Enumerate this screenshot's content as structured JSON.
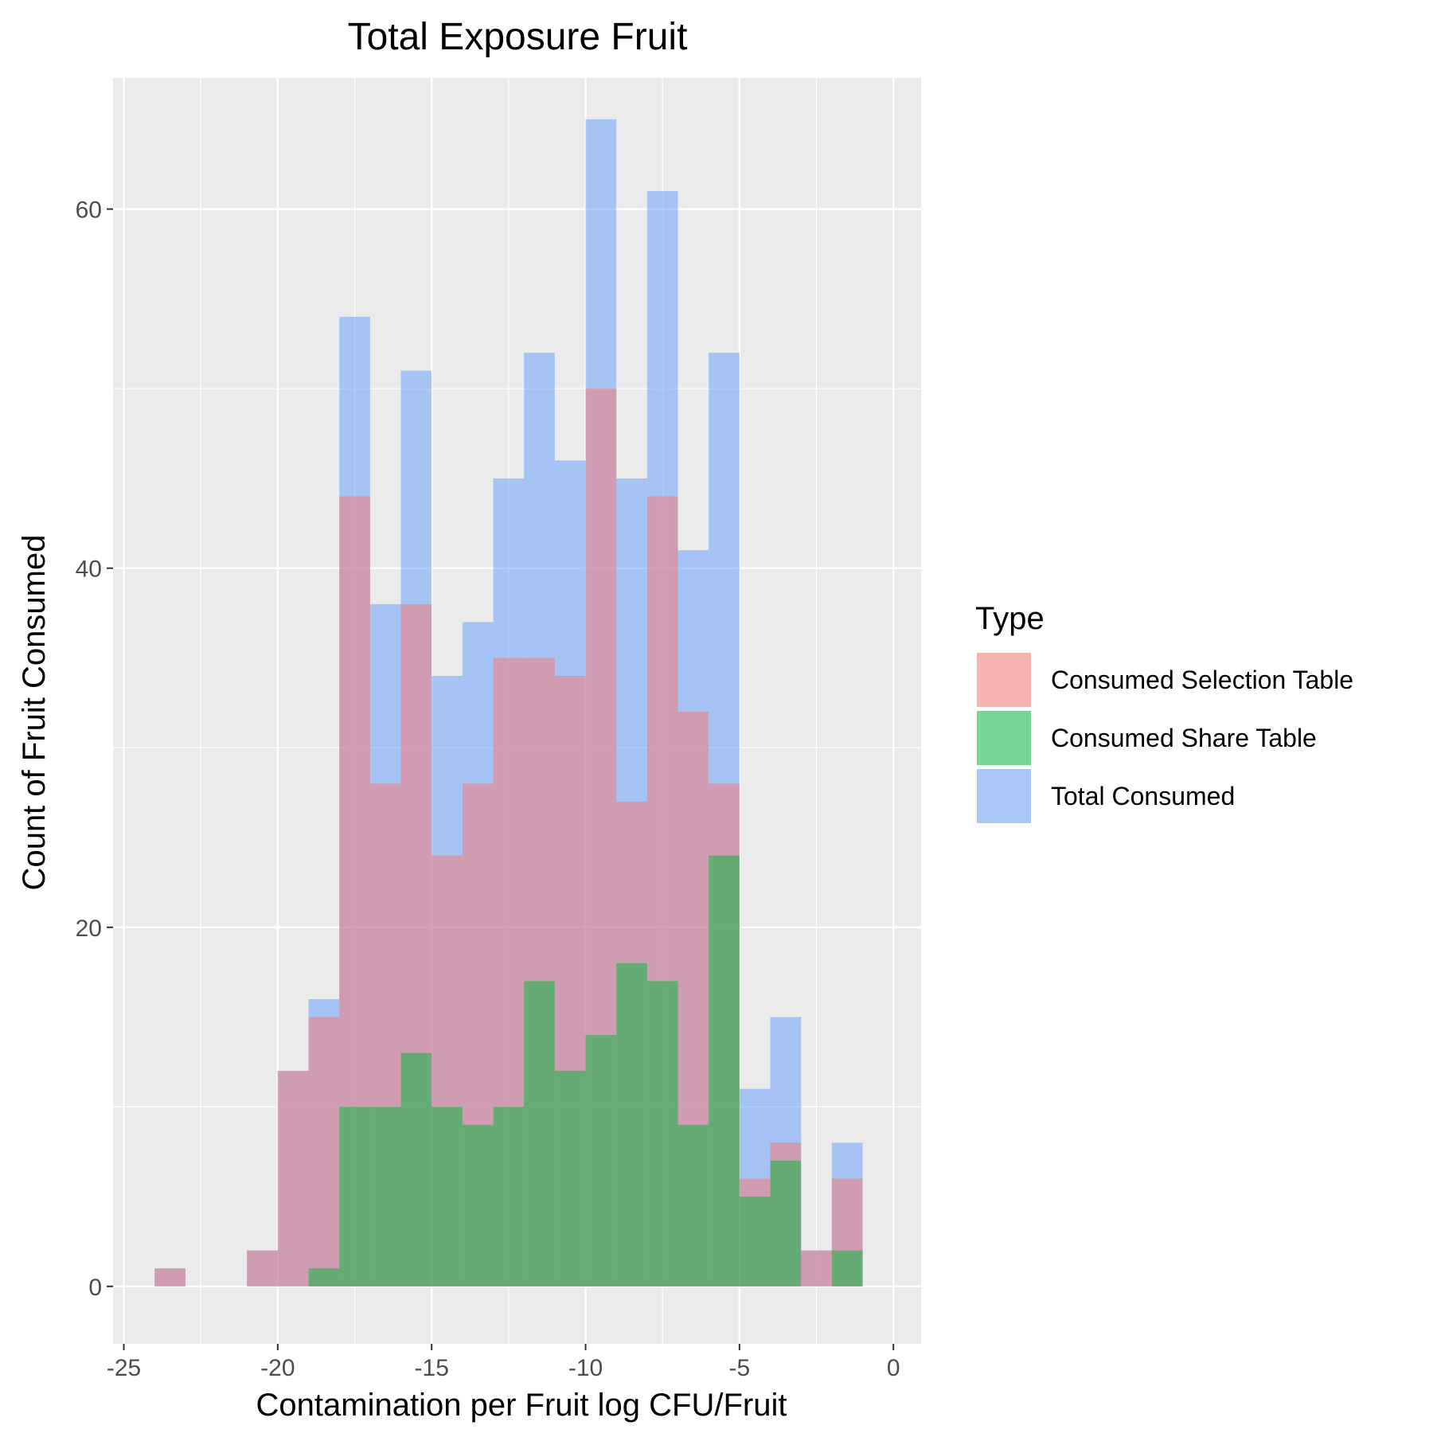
{
  "chart_data": {
    "type": "bar",
    "title": "Total Exposure Fruit",
    "xlabel": "Contamination per Fruit log CFU/Fruit",
    "ylabel": "Count of Fruit Consumed",
    "xlim": [
      -25,
      0
    ],
    "ylim": [
      0,
      64
    ],
    "x_ticks": [
      -25,
      -20,
      -15,
      -10,
      -5,
      0
    ],
    "x_tick_labels": [
      "-25",
      "-20",
      "-15",
      "-10",
      "-5",
      "0"
    ],
    "y_ticks": [
      0,
      20,
      40,
      60
    ],
    "y_tick_labels": [
      "0",
      "20",
      "40",
      "60"
    ],
    "bin_width": 1,
    "bin_starts": [
      -24,
      -23,
      -22,
      -21,
      -20,
      -19,
      -18,
      -17,
      -16,
      -15,
      -14,
      -13,
      -12,
      -11,
      -10,
      -9,
      -8,
      -7,
      -6,
      -5,
      -4,
      -3,
      -2,
      -1
    ],
    "grid": true,
    "legend": {
      "title": "Type",
      "position": "right"
    },
    "series": [
      {
        "name": "Total Consumed",
        "color": "#619cff",
        "values": [
          1,
          0,
          0,
          2,
          12,
          16,
          54,
          38,
          51,
          34,
          37,
          45,
          52,
          46,
          65,
          45,
          61,
          41,
          52,
          11,
          15,
          2,
          8,
          0
        ]
      },
      {
        "name": "Consumed Selection Table",
        "color": "#f8766d",
        "values": [
          1,
          0,
          0,
          2,
          12,
          15,
          44,
          28,
          38,
          24,
          28,
          35,
          35,
          34,
          50,
          27,
          44,
          32,
          28,
          6,
          8,
          2,
          6,
          0
        ]
      },
      {
        "name": "Consumed Share Table",
        "color": "#00ba38",
        "values": [
          0,
          0,
          0,
          0,
          0,
          1,
          10,
          10,
          13,
          10,
          9,
          10,
          17,
          12,
          14,
          18,
          17,
          9,
          24,
          5,
          7,
          0,
          2,
          0
        ]
      }
    ],
    "legend_order": [
      "Consumed Selection Table",
      "Consumed Share Table",
      "Total Consumed"
    ],
    "fill_alpha": 0.5,
    "panel_background": "#ebebeb",
    "grid_color": "#ffffff"
  }
}
